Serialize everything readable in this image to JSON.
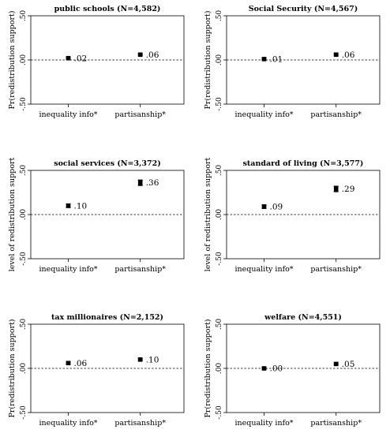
{
  "chart_data": [
    {
      "type": "scatter",
      "title": "public schools (N=4,582)",
      "ylabel": "Pr(redistribution support)",
      "ylim": [
        -0.5,
        0.5
      ],
      "yticks": [
        ".50",
        ".00",
        "-.50"
      ],
      "categories": [
        "inequality info*",
        "partisanship*"
      ],
      "values": [
        0.02,
        0.06
      ],
      "value_labels": [
        ".02",
        ".06"
      ],
      "ci_low": [
        0.01,
        0.05
      ],
      "ci_high": [
        0.03,
        0.07
      ],
      "reference_line": 0
    },
    {
      "type": "scatter",
      "title": "Social Security (N=4,567)",
      "ylabel": "Pr(redistribution support)",
      "ylim": [
        -0.5,
        0.5
      ],
      "yticks": [
        ".50",
        ".00",
        "-.50"
      ],
      "categories": [
        "inequality info*",
        "partisanship*"
      ],
      "values": [
        0.01,
        0.06
      ],
      "value_labels": [
        ".01",
        ".06"
      ],
      "ci_low": [
        0.0,
        0.05
      ],
      "ci_high": [
        0.02,
        0.07
      ],
      "reference_line": 0
    },
    {
      "type": "scatter",
      "title": "social services (N=3,372)",
      "ylabel": "level of redistribution support",
      "ylim": [
        -0.5,
        0.5
      ],
      "yticks": [
        ".50",
        ".00",
        "-.50"
      ],
      "categories": [
        "inequality info*",
        "partisanship*"
      ],
      "values": [
        0.1,
        0.36
      ],
      "value_labels": [
        ".10",
        ".36"
      ],
      "ci_low": [
        0.08,
        0.33
      ],
      "ci_high": [
        0.12,
        0.39
      ],
      "reference_line": 0
    },
    {
      "type": "scatter",
      "title": "standard of living (N=3,577)",
      "ylabel": "level of redistribution support",
      "ylim": [
        -0.5,
        0.5
      ],
      "yticks": [
        ".50",
        ".00",
        "-.50"
      ],
      "categories": [
        "inequality info*",
        "partisanship*"
      ],
      "values": [
        0.09,
        0.29
      ],
      "value_labels": [
        ".09",
        ".29"
      ],
      "ci_low": [
        0.07,
        0.26
      ],
      "ci_high": [
        0.11,
        0.32
      ],
      "reference_line": 0
    },
    {
      "type": "scatter",
      "title": "tax millionaires (N=2,152)",
      "ylabel": "Pr(redistribution support)",
      "ylim": [
        -0.5,
        0.5
      ],
      "yticks": [
        ".50",
        ".00",
        "-.50"
      ],
      "categories": [
        "inequality info*",
        "partisanship*"
      ],
      "values": [
        0.06,
        0.1
      ],
      "value_labels": [
        ".06",
        ".10"
      ],
      "ci_low": [
        0.05,
        0.09
      ],
      "ci_high": [
        0.07,
        0.11
      ],
      "reference_line": 0
    },
    {
      "type": "scatter",
      "title": "welfare (N=4,551)",
      "ylabel": "Pr(redistribution support)",
      "ylim": [
        -0.5,
        0.5
      ],
      "yticks": [
        ".50",
        ".00",
        "-.50"
      ],
      "categories": [
        "inequality info*",
        "partisanship*"
      ],
      "values": [
        0.0,
        0.05
      ],
      "value_labels": [
        ".00",
        ".05"
      ],
      "ci_low": [
        -0.01,
        0.04
      ],
      "ci_high": [
        0.01,
        0.06
      ],
      "reference_line": 0
    }
  ]
}
